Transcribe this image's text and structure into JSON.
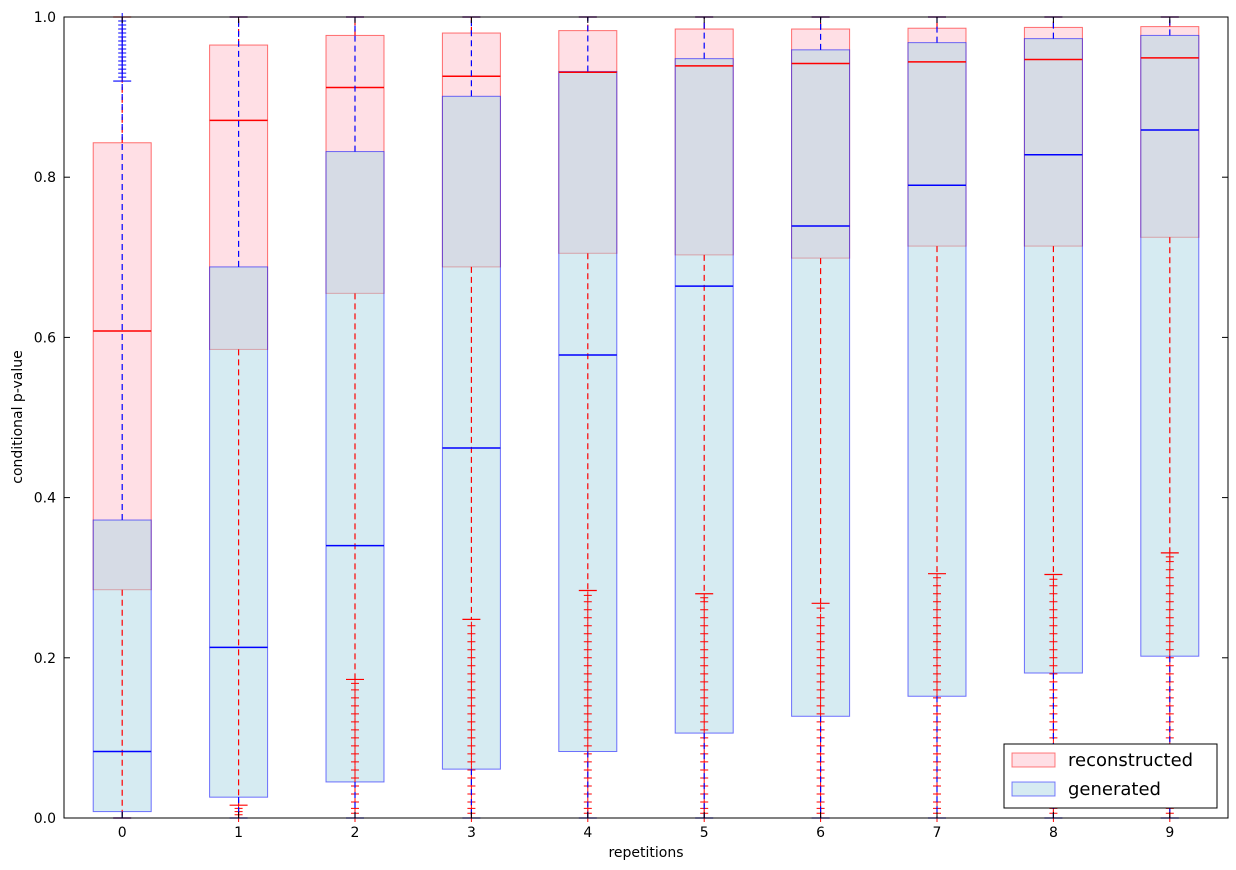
{
  "chart_data": {
    "type": "boxplot",
    "title": "",
    "xlabel": "repetitions",
    "ylabel": "conditional p-value",
    "ylim": [
      0.0,
      1.0
    ],
    "xlim": [
      -0.5,
      9.5
    ],
    "categories": [
      "0",
      "1",
      "2",
      "3",
      "4",
      "5",
      "6",
      "7",
      "8",
      "9"
    ],
    "yticks": [
      "0.0",
      "0.2",
      "0.4",
      "0.6",
      "0.8",
      "1.0"
    ],
    "legend": {
      "placement": "bottom-right"
    },
    "colors": {
      "reconstructed_edge": "#ff0000",
      "reconstructed_fill": "#ffc0cb",
      "generated_edge": "#0000ff",
      "generated_fill": "#add8e6"
    },
    "series": [
      {
        "name": "reconstructed",
        "boxes": [
          {
            "q1": 0.285,
            "median": 0.608,
            "q3": 0.843,
            "whisker_low": 0.0,
            "whisker_high": 1.0,
            "fliers_low": [],
            "fliers_high": []
          },
          {
            "q1": 0.585,
            "median": 0.871,
            "q3": 0.965,
            "whisker_low": 0.016,
            "whisker_high": 1.0,
            "fliers_low": [
              0.0,
              0.004,
              0.008,
              0.012
            ],
            "fliers_high": []
          },
          {
            "q1": 0.655,
            "median": 0.912,
            "q3": 0.977,
            "whisker_low": 0.173,
            "whisker_high": 1.0,
            "fliers_low": [
              0.0,
              0.006,
              0.012,
              0.02,
              0.03,
              0.04,
              0.05,
              0.06,
              0.07,
              0.08,
              0.09,
              0.1,
              0.11,
              0.12,
              0.13,
              0.14,
              0.15,
              0.16,
              0.168
            ],
            "fliers_high": []
          },
          {
            "q1": 0.688,
            "median": 0.926,
            "q3": 0.98,
            "whisker_low": 0.248,
            "whisker_high": 1.0,
            "fliers_low": [
              0.0,
              0.006,
              0.012,
              0.02,
              0.03,
              0.04,
              0.05,
              0.06,
              0.07,
              0.08,
              0.09,
              0.1,
              0.11,
              0.12,
              0.13,
              0.14,
              0.15,
              0.16,
              0.17,
              0.18,
              0.19,
              0.2,
              0.21,
              0.22,
              0.23,
              0.24
            ],
            "fliers_high": []
          },
          {
            "q1": 0.705,
            "median": 0.931,
            "q3": 0.983,
            "whisker_low": 0.284,
            "whisker_high": 1.0,
            "fliers_low": [
              0.0,
              0.006,
              0.012,
              0.02,
              0.03,
              0.04,
              0.05,
              0.06,
              0.07,
              0.08,
              0.09,
              0.1,
              0.11,
              0.12,
              0.13,
              0.14,
              0.15,
              0.16,
              0.17,
              0.18,
              0.19,
              0.2,
              0.21,
              0.22,
              0.23,
              0.24,
              0.25,
              0.26,
              0.27,
              0.278
            ],
            "fliers_high": []
          },
          {
            "q1": 0.703,
            "median": 0.939,
            "q3": 0.985,
            "whisker_low": 0.28,
            "whisker_high": 1.0,
            "fliers_low": [
              0.0,
              0.006,
              0.012,
              0.02,
              0.03,
              0.04,
              0.05,
              0.06,
              0.07,
              0.08,
              0.09,
              0.1,
              0.11,
              0.12,
              0.13,
              0.14,
              0.15,
              0.16,
              0.17,
              0.18,
              0.19,
              0.2,
              0.21,
              0.22,
              0.23,
              0.24,
              0.25,
              0.26,
              0.27,
              0.275
            ],
            "fliers_high": []
          },
          {
            "q1": 0.699,
            "median": 0.942,
            "q3": 0.985,
            "whisker_low": 0.268,
            "whisker_high": 1.0,
            "fliers_low": [
              0.0,
              0.006,
              0.012,
              0.02,
              0.03,
              0.04,
              0.05,
              0.06,
              0.07,
              0.08,
              0.09,
              0.1,
              0.11,
              0.12,
              0.13,
              0.14,
              0.15,
              0.16,
              0.17,
              0.18,
              0.19,
              0.2,
              0.21,
              0.22,
              0.23,
              0.24,
              0.25,
              0.262
            ],
            "fliers_high": []
          },
          {
            "q1": 0.714,
            "median": 0.944,
            "q3": 0.986,
            "whisker_low": 0.305,
            "whisker_high": 1.0,
            "fliers_low": [
              0.0,
              0.006,
              0.012,
              0.02,
              0.03,
              0.04,
              0.05,
              0.06,
              0.07,
              0.08,
              0.09,
              0.1,
              0.11,
              0.12,
              0.13,
              0.14,
              0.15,
              0.16,
              0.17,
              0.18,
              0.19,
              0.2,
              0.21,
              0.22,
              0.23,
              0.24,
              0.25,
              0.26,
              0.27,
              0.28,
              0.29,
              0.3
            ],
            "fliers_high": []
          },
          {
            "q1": 0.714,
            "median": 0.947,
            "q3": 0.987,
            "whisker_low": 0.304,
            "whisker_high": 1.0,
            "fliers_low": [
              0.0,
              0.006,
              0.012,
              0.02,
              0.03,
              0.04,
              0.05,
              0.06,
              0.07,
              0.08,
              0.09,
              0.1,
              0.11,
              0.12,
              0.13,
              0.14,
              0.15,
              0.16,
              0.17,
              0.18,
              0.19,
              0.2,
              0.21,
              0.22,
              0.23,
              0.24,
              0.25,
              0.26,
              0.27,
              0.28,
              0.29,
              0.298
            ],
            "fliers_high": []
          },
          {
            "q1": 0.725,
            "median": 0.949,
            "q3": 0.988,
            "whisker_low": 0.331,
            "whisker_high": 1.0,
            "fliers_low": [
              0.0,
              0.006,
              0.012,
              0.02,
              0.03,
              0.04,
              0.05,
              0.06,
              0.07,
              0.08,
              0.09,
              0.1,
              0.11,
              0.12,
              0.13,
              0.14,
              0.15,
              0.16,
              0.17,
              0.18,
              0.19,
              0.2,
              0.21,
              0.22,
              0.23,
              0.24,
              0.25,
              0.26,
              0.27,
              0.28,
              0.29,
              0.3,
              0.31,
              0.32,
              0.326
            ],
            "fliers_high": []
          }
        ]
      },
      {
        "name": "generated",
        "boxes": [
          {
            "q1": 0.008,
            "median": 0.083,
            "q3": 0.372,
            "whisker_low": 0.0,
            "whisker_high": 0.92,
            "fliers_low": [],
            "fliers_high": [
              0.925,
              0.93,
              0.935,
              0.94,
              0.945,
              0.95,
              0.955,
              0.96,
              0.965,
              0.97,
              0.975,
              0.98,
              0.985,
              0.99,
              0.995,
              1.0
            ]
          },
          {
            "q1": 0.026,
            "median": 0.213,
            "q3": 0.688,
            "whisker_low": 0.0,
            "whisker_high": 1.0,
            "fliers_low": [],
            "fliers_high": []
          },
          {
            "q1": 0.045,
            "median": 0.34,
            "q3": 0.832,
            "whisker_low": 0.0,
            "whisker_high": 1.0,
            "fliers_low": [],
            "fliers_high": []
          },
          {
            "q1": 0.061,
            "median": 0.462,
            "q3": 0.901,
            "whisker_low": 0.0,
            "whisker_high": 1.0,
            "fliers_low": [],
            "fliers_high": []
          },
          {
            "q1": 0.083,
            "median": 0.578,
            "q3": 0.932,
            "whisker_low": 0.0,
            "whisker_high": 1.0,
            "fliers_low": [],
            "fliers_high": []
          },
          {
            "q1": 0.106,
            "median": 0.664,
            "q3": 0.948,
            "whisker_low": 0.0,
            "whisker_high": 1.0,
            "fliers_low": [],
            "fliers_high": []
          },
          {
            "q1": 0.127,
            "median": 0.739,
            "q3": 0.959,
            "whisker_low": 0.0,
            "whisker_high": 1.0,
            "fliers_low": [],
            "fliers_high": []
          },
          {
            "q1": 0.152,
            "median": 0.79,
            "q3": 0.968,
            "whisker_low": 0.0,
            "whisker_high": 1.0,
            "fliers_low": [],
            "fliers_high": []
          },
          {
            "q1": 0.181,
            "median": 0.828,
            "q3": 0.973,
            "whisker_low": 0.0,
            "whisker_high": 1.0,
            "fliers_low": [],
            "fliers_high": []
          },
          {
            "q1": 0.202,
            "median": 0.859,
            "q3": 0.977,
            "whisker_low": 0.0,
            "whisker_high": 1.0,
            "fliers_low": [],
            "fliers_high": []
          }
        ]
      }
    ]
  }
}
